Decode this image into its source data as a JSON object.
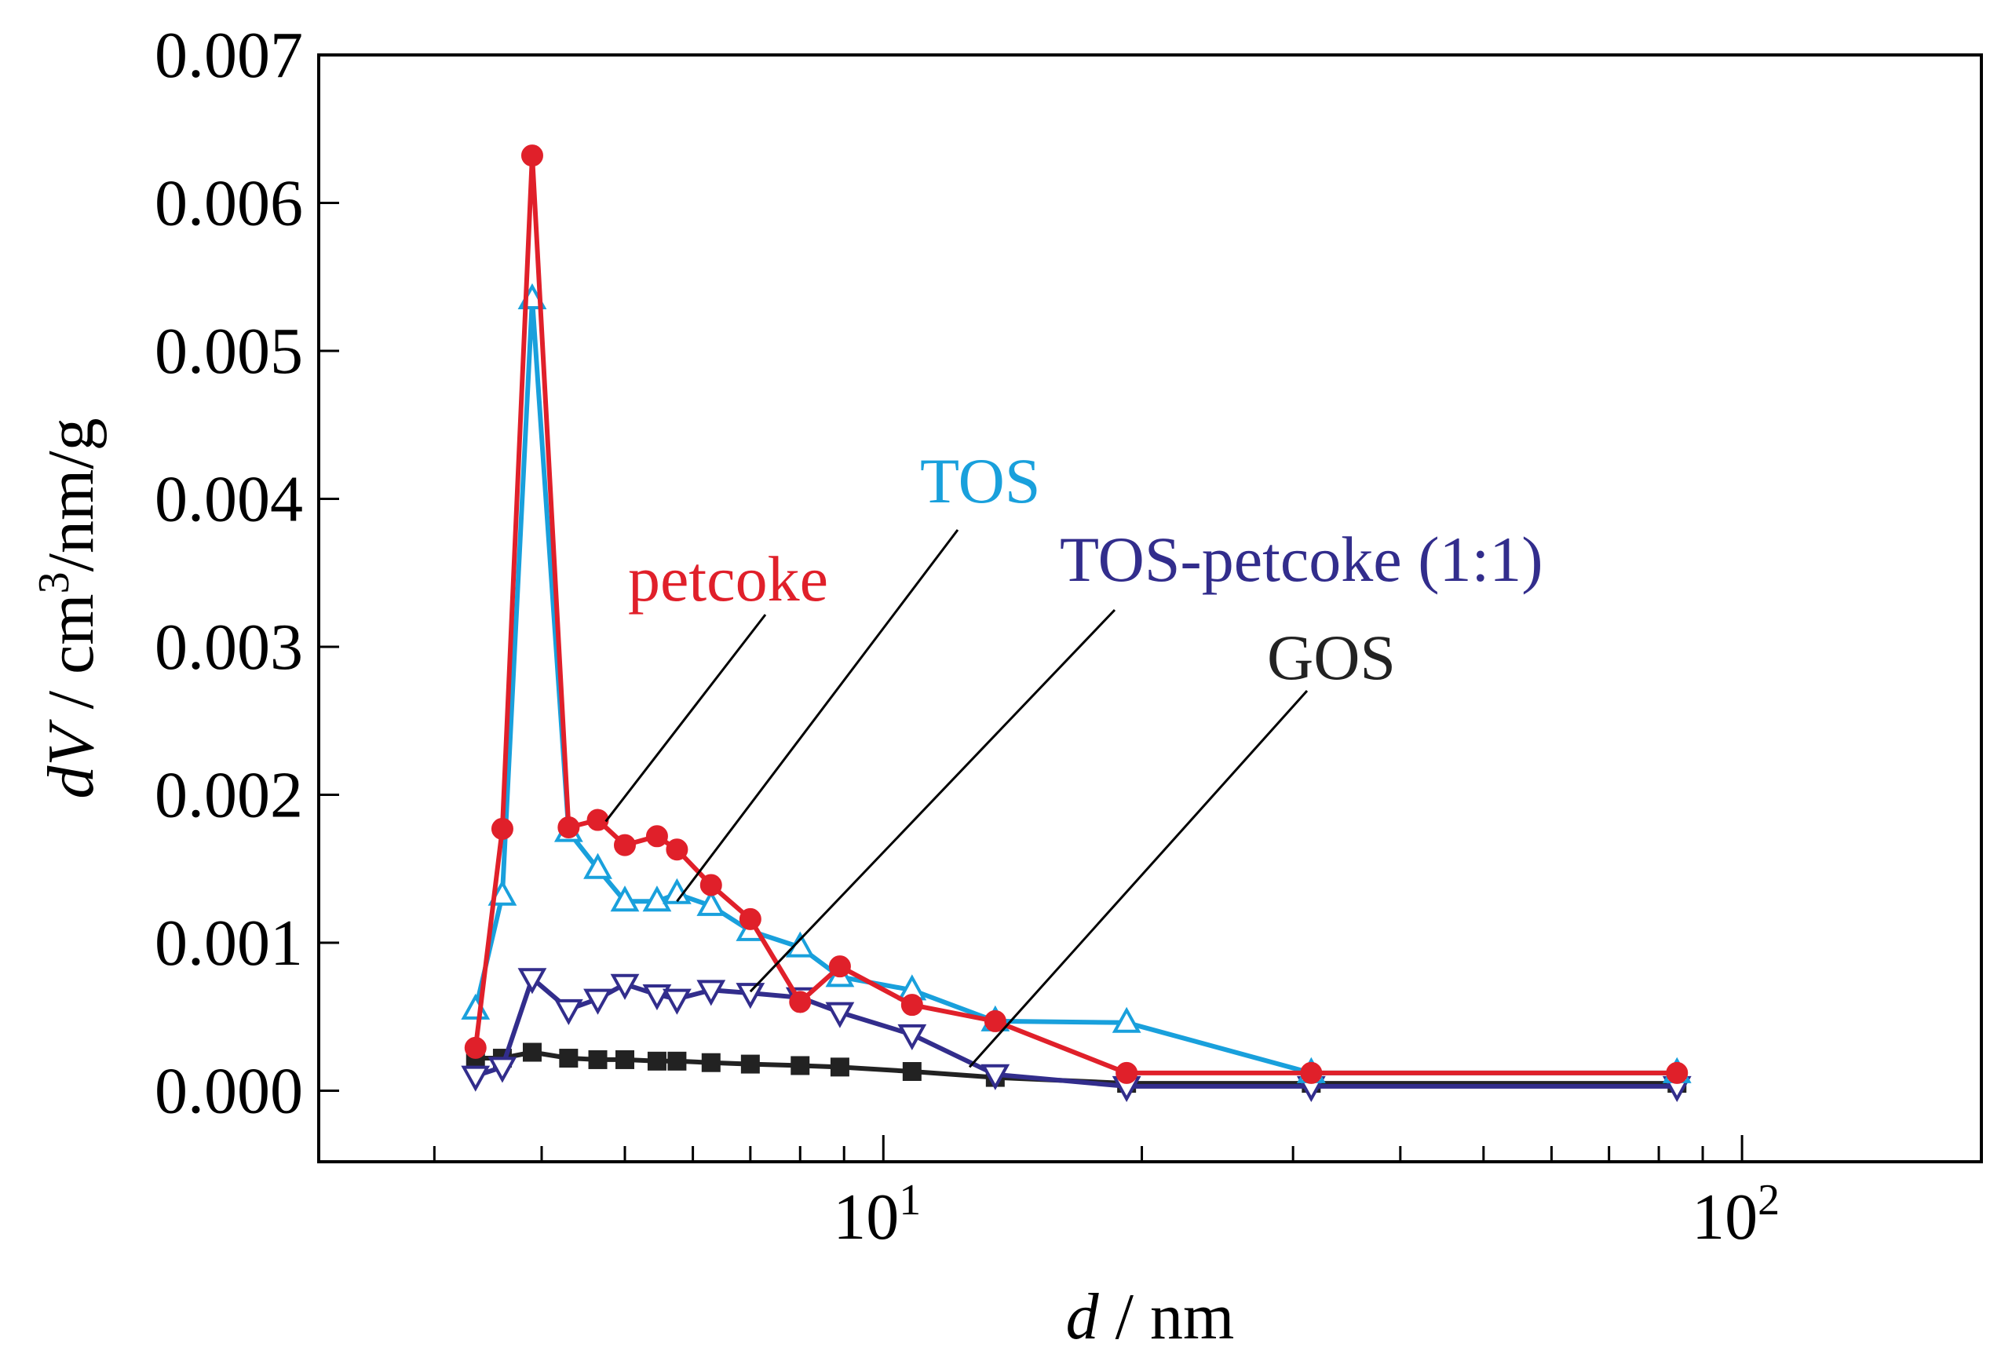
{
  "chart_data": {
    "type": "line",
    "title": "",
    "xlabel_var": "d",
    "xlabel_unit": " / nm",
    "ylabel_var": "dV",
    "ylabel_unit": " / cm",
    "ylabel_sup": "3",
    "ylabel_tail": "/nm/g",
    "xscale": "log",
    "xlim": [
      2.2,
      190
    ],
    "ylim": [
      -0.00048,
      0.007
    ],
    "x_ticks": [
      {
        "value": 10,
        "base": "10",
        "exp": "1"
      },
      {
        "value": 100,
        "base": "10",
        "exp": "2"
      }
    ],
    "y_ticks": [
      {
        "value": 0.0,
        "label": "0.000"
      },
      {
        "value": 0.001,
        "label": "0.001"
      },
      {
        "value": 0.002,
        "label": "0.002"
      },
      {
        "value": 0.003,
        "label": "0.003"
      },
      {
        "value": 0.004,
        "label": "0.004"
      },
      {
        "value": 0.005,
        "label": "0.005"
      },
      {
        "value": 0.006,
        "label": "0.006"
      },
      {
        "value": 0.007,
        "label": "0.007"
      }
    ],
    "grid": false,
    "series": [
      {
        "name": "TOS",
        "color": "#19a0dc",
        "marker": "triangle-up-open",
        "x": [
          3.35,
          3.6,
          3.9,
          4.3,
          4.65,
          5.0,
          5.45,
          5.75,
          6.3,
          7.0,
          8.0,
          8.9,
          10.8,
          13.5,
          19.2,
          31.5,
          84
        ],
        "values": [
          0.00055,
          0.00132,
          0.00535,
          0.00175,
          0.0015,
          0.00128,
          0.00128,
          0.00133,
          0.00125,
          0.00108,
          0.00097,
          0.00077,
          0.00068,
          0.00047,
          0.00046,
          0.00012,
          0.00012
        ]
      },
      {
        "name": "petcoke",
        "color": "#e0202a",
        "marker": "circle-filled",
        "x": [
          3.35,
          3.6,
          3.9,
          4.3,
          4.65,
          5.0,
          5.45,
          5.75,
          6.3,
          7.0,
          8.0,
          8.9,
          10.8,
          13.5,
          19.2,
          31.5,
          84
        ],
        "values": [
          0.00029,
          0.00177,
          0.00632,
          0.00178,
          0.00183,
          0.00166,
          0.00172,
          0.00163,
          0.00139,
          0.00116,
          0.0006,
          0.00084,
          0.00058,
          0.00047,
          0.00012,
          0.00012,
          0.00012
        ]
      },
      {
        "name": "TOS-petcoke (1:1)",
        "color": "#322d8c",
        "marker": "triangle-down-open",
        "x": [
          3.35,
          3.6,
          3.9,
          4.3,
          4.65,
          5.0,
          5.45,
          5.75,
          6.3,
          7.0,
          8.0,
          8.9,
          10.8,
          13.5,
          19.2,
          31.5,
          84
        ],
        "values": [
          0.0001,
          0.00016,
          0.00076,
          0.00055,
          0.00062,
          0.00072,
          0.00065,
          0.00062,
          0.00068,
          0.00066,
          0.00063,
          0.00053,
          0.00038,
          0.00011,
          3e-05,
          3e-05,
          3e-05
        ]
      },
      {
        "name": "GOS",
        "color": "#222222",
        "marker": "square-filled",
        "x": [
          3.35,
          3.6,
          3.9,
          4.3,
          4.65,
          5.0,
          5.45,
          5.75,
          6.3,
          7.0,
          8.0,
          8.9,
          10.8,
          13.5,
          19.2,
          31.5,
          84
        ],
        "values": [
          0.00022,
          0.00022,
          0.00026,
          0.00022,
          0.00021,
          0.00021,
          0.0002,
          0.0002,
          0.00019,
          0.00018,
          0.00017,
          0.00016,
          0.00013,
          9e-05,
          5e-05,
          5e-05,
          5e-05
        ]
      }
    ],
    "annotations": [
      {
        "series": "petcoke",
        "text": "petcoke",
        "color": "#e0202a"
      },
      {
        "series": "TOS",
        "text": "TOS",
        "color": "#19a0dc"
      },
      {
        "series": "TOS-petcoke (1:1)",
        "text": "TOS-petcoke (1:1)",
        "color": "#322d8c"
      },
      {
        "series": "GOS",
        "text": "GOS",
        "color": "#222222"
      }
    ]
  }
}
